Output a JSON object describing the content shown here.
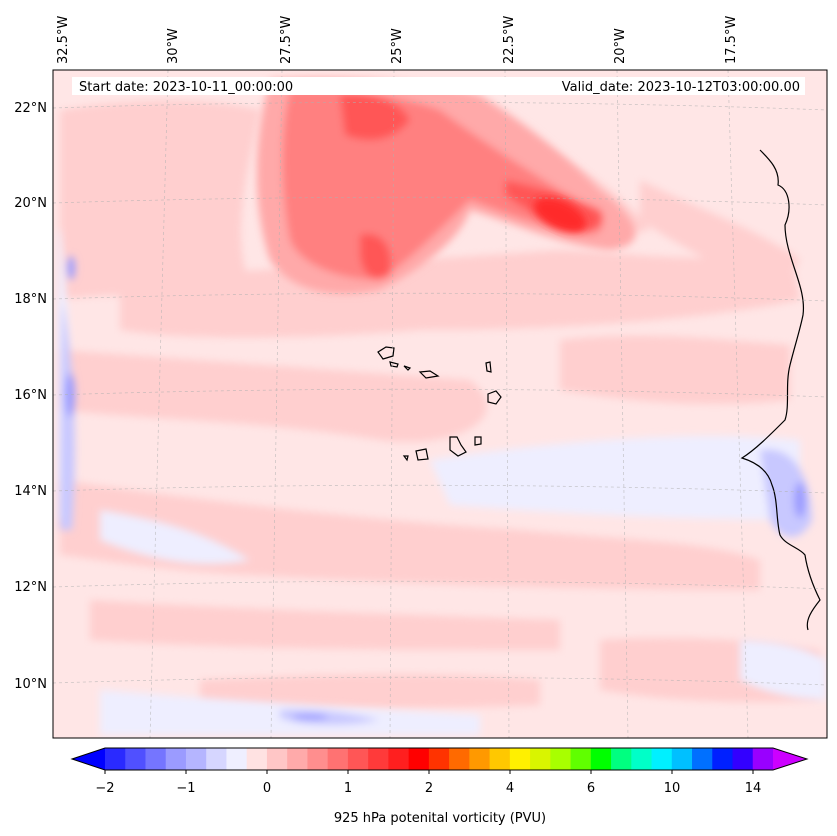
{
  "map": {
    "start_date": "Start date: 2023-10-11_00:00:00",
    "valid_date": "Valid_date: 2023-10-12T03:00:00.00",
    "lon_labels": [
      "32.5°W",
      "30°W",
      "27.5°W",
      "25°W",
      "22.5°W",
      "20°W",
      "17.5°W"
    ],
    "lat_labels": [
      "22°N",
      "20°N",
      "18°N",
      "16°N",
      "14°N",
      "12°N",
      "10°N"
    ],
    "colors": {
      "background": "#ffe6e6",
      "light_pink": "#ffcfcf",
      "pink": "#ffa9a9",
      "red": "#ff8080",
      "strong_red": "#ff5757",
      "max_red": "#ff2a2a",
      "light_blue": "#eeeeff",
      "blue": "#c8c8ff",
      "deep_blue": "#9c9cff"
    }
  },
  "colorbar": {
    "label": "925 hPa potenital vorticity (PVU)",
    "tick_labels": [
      "−2",
      "−1",
      "0",
      "1",
      "2",
      "4",
      "6",
      "10",
      "14"
    ],
    "colors": [
      "#0000ff",
      "#2a2aff",
      "#5050ff",
      "#7575ff",
      "#9b9bff",
      "#b5b5ff",
      "#d6d6ff",
      "#efefff",
      "#ffe2e2",
      "#ffc6c6",
      "#ffaaaa",
      "#ff8e8e",
      "#ff7272",
      "#ff5656",
      "#ff3a3a",
      "#ff1f1f",
      "#ff0000",
      "#ff3300",
      "#ff6a00",
      "#ff9900",
      "#ffc800",
      "#fff000",
      "#d9f500",
      "#a8ff00",
      "#60ff00",
      "#00ff00",
      "#00ff80",
      "#00ffc8",
      "#00f0ff",
      "#00c0ff",
      "#0070ff",
      "#0020ff",
      "#3300ff",
      "#9900ff",
      "#cc00ff"
    ]
  }
}
